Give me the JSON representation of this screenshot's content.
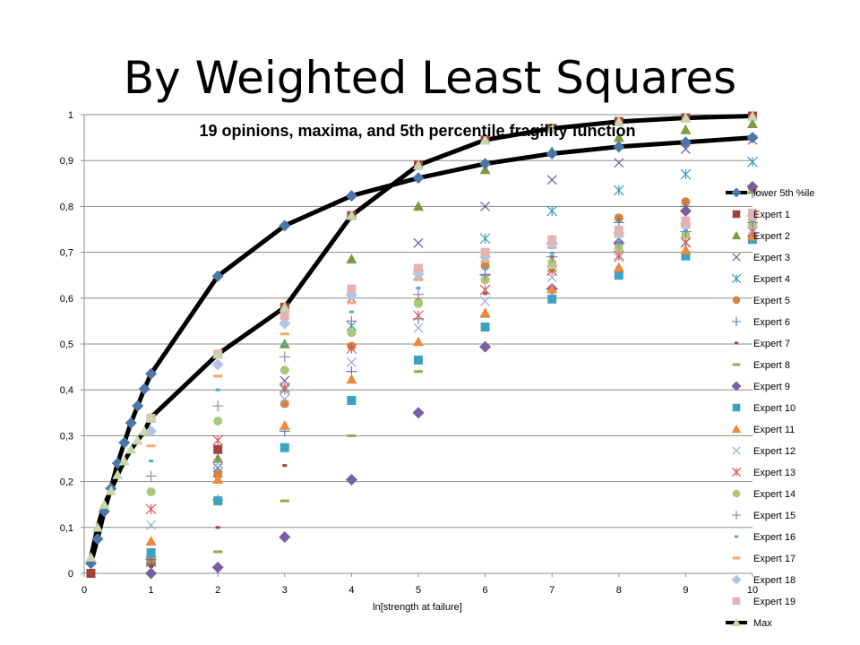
{
  "slide": {
    "title": "By Weighted Least Squares"
  },
  "chart_data": {
    "type": "scatter",
    "title": "19 opinions, maxima, and 5th percentile fragility function",
    "xlabel": "ln[strength at failure]",
    "ylabel": "",
    "xlim": [
      0,
      10
    ],
    "ylim": [
      0,
      1
    ],
    "x_ticks": [
      "0",
      "1",
      "2",
      "3",
      "4",
      "5",
      "6",
      "7",
      "8",
      "9",
      "10"
    ],
    "y_ticks": [
      "0",
      "0,1",
      "0,2",
      "0,3",
      "0,4",
      "0,5",
      "0,6",
      "0,7",
      "0,8",
      "0,9",
      "1"
    ],
    "grid": "horizontal",
    "legend": "right",
    "series": [
      {
        "name": "lower 5th %ile",
        "marker": "diamond",
        "color": "#4a76a8",
        "line": true,
        "x": [
          0.1,
          0.2,
          0.3,
          0.4,
          0.5,
          0.6,
          0.7,
          0.8,
          0.9,
          1,
          2,
          3,
          4,
          5,
          6,
          7,
          8,
          9,
          10
        ],
        "y": [
          0.022,
          0.075,
          0.135,
          0.185,
          0.24,
          0.285,
          0.328,
          0.365,
          0.402,
          0.435,
          0.648,
          0.758,
          0.823,
          0.862,
          0.893,
          0.915,
          0.93,
          0.94,
          0.95
        ]
      },
      {
        "name": "Expert 1",
        "marker": "square",
        "color": "#a0413e",
        "x": [
          0.1,
          1,
          2,
          3,
          4,
          5,
          6,
          7,
          8,
          9,
          10
        ],
        "y": [
          0.0,
          0.025,
          0.27,
          0.58,
          0.78,
          0.89,
          0.945,
          0.97,
          0.985,
          0.993,
          0.997
        ]
      },
      {
        "name": "Expert 2",
        "marker": "triangle",
        "color": "#7d9b3a",
        "x": [
          1,
          2,
          3,
          4,
          5,
          6,
          7,
          8,
          9,
          10
        ],
        "y": [
          0.03,
          0.25,
          0.5,
          0.685,
          0.8,
          0.88,
          0.92,
          0.95,
          0.967,
          0.98
        ]
      },
      {
        "name": "Expert 3",
        "marker": "x",
        "color": "#6a58a0",
        "x": [
          1,
          2,
          3,
          4,
          5,
          6,
          7,
          8,
          9,
          10
        ],
        "y": [
          0.03,
          0.23,
          0.42,
          0.6,
          0.72,
          0.8,
          0.858,
          0.895,
          0.925,
          0.945
        ]
      },
      {
        "name": "Expert 4",
        "marker": "star",
        "color": "#3d9db8",
        "x": [
          1,
          2,
          3,
          4,
          5,
          6,
          7,
          8,
          9,
          10
        ],
        "y": [
          0.025,
          0.22,
          0.4,
          0.54,
          0.65,
          0.73,
          0.79,
          0.835,
          0.87,
          0.897
        ]
      },
      {
        "name": "Expert 5",
        "marker": "circle",
        "color": "#d7823a",
        "x": [
          1,
          2,
          3,
          4,
          5,
          6,
          7,
          8,
          9,
          10
        ],
        "y": [
          0.03,
          0.215,
          0.37,
          0.495,
          0.59,
          0.67,
          0.728,
          0.775,
          0.81,
          0.84
        ]
      },
      {
        "name": "Expert 6",
        "marker": "plus",
        "color": "#4a76a8",
        "x": [
          1,
          2,
          3,
          4,
          5,
          6,
          7,
          8,
          9,
          10
        ],
        "y": [
          0.03,
          0.16,
          0.31,
          0.44,
          0.555,
          0.65,
          0.72,
          0.765,
          0.8,
          0.83
        ]
      },
      {
        "name": "Expert 7",
        "marker": "shortdash",
        "color": "#a0413e",
        "x": [
          1,
          2,
          3,
          4,
          5,
          6,
          7,
          8,
          9,
          10
        ],
        "y": [
          0.015,
          0.1,
          0.235,
          0.38,
          0.5,
          0.61,
          0.69,
          0.75,
          0.795,
          0.83
        ]
      },
      {
        "name": "Expert 8",
        "marker": "dash",
        "color": "#8caf4a",
        "x": [
          1,
          2,
          3,
          4,
          5,
          6,
          7,
          8,
          9,
          10
        ],
        "y": [
          0.0,
          0.047,
          0.158,
          0.3,
          0.44,
          0.56,
          0.66,
          0.735,
          0.79,
          0.83
        ]
      },
      {
        "name": "Expert 9",
        "marker": "diamond",
        "color": "#7a5ea3",
        "x": [
          1,
          2,
          3,
          4,
          5,
          6,
          7,
          8,
          9,
          10
        ],
        "y": [
          0.0,
          0.013,
          0.079,
          0.204,
          0.35,
          0.494,
          0.62,
          0.72,
          0.79,
          0.843
        ]
      },
      {
        "name": "Expert 10",
        "marker": "square",
        "color": "#3ba3bf",
        "x": [
          1,
          2,
          3,
          4,
          5,
          6,
          7,
          8,
          9,
          10
        ],
        "y": [
          0.045,
          0.158,
          0.274,
          0.377,
          0.465,
          0.537,
          0.598,
          0.65,
          0.692,
          0.728
        ]
      },
      {
        "name": "Expert 11",
        "marker": "triangle",
        "color": "#ee8a3a",
        "x": [
          1,
          2,
          3,
          4,
          5,
          6,
          7,
          8,
          9,
          10
        ],
        "y": [
          0.07,
          0.205,
          0.322,
          0.423,
          0.505,
          0.568,
          0.62,
          0.667,
          0.705,
          0.735
        ]
      },
      {
        "name": "Expert 12",
        "marker": "x",
        "color": "#93aad6",
        "x": [
          1,
          2,
          3,
          4,
          5,
          6,
          7,
          8,
          9,
          10
        ],
        "y": [
          0.105,
          0.24,
          0.38,
          0.46,
          0.535,
          0.593,
          0.645,
          0.688,
          0.72,
          0.75
        ]
      },
      {
        "name": "Expert 13",
        "marker": "star",
        "color": "#d85a58",
        "x": [
          1,
          2,
          3,
          4,
          5,
          6,
          7,
          8,
          9,
          10
        ],
        "y": [
          0.14,
          0.29,
          0.405,
          0.49,
          0.562,
          0.618,
          0.66,
          0.693,
          0.722,
          0.745
        ]
      },
      {
        "name": "Expert 14",
        "marker": "circle",
        "color": "#aac77a",
        "x": [
          1,
          2,
          3,
          4,
          5,
          6,
          7,
          8,
          9,
          10
        ],
        "y": [
          0.178,
          0.332,
          0.443,
          0.525,
          0.588,
          0.64,
          0.677,
          0.71,
          0.738,
          0.762
        ]
      },
      {
        "name": "Expert 15",
        "marker": "plus",
        "color": "#8b7dab",
        "x": [
          1,
          2,
          3,
          4,
          5,
          6,
          7,
          8,
          9,
          10
        ],
        "y": [
          0.212,
          0.365,
          0.472,
          0.55,
          0.608,
          0.652,
          0.69,
          0.72,
          0.745,
          0.765
        ]
      },
      {
        "name": "Expert 16",
        "marker": "shortdash",
        "color": "#4aafcf",
        "x": [
          1,
          2,
          3,
          4,
          5,
          6,
          7,
          8,
          9,
          10
        ],
        "y": [
          0.245,
          0.4,
          0.5,
          0.57,
          0.622,
          0.665,
          0.698,
          0.725,
          0.748,
          0.77
        ]
      },
      {
        "name": "Expert 17",
        "marker": "dash",
        "color": "#f5a96a",
        "x": [
          1,
          2,
          3,
          4,
          5,
          6,
          7,
          8,
          9,
          10
        ],
        "y": [
          0.278,
          0.43,
          0.522,
          0.59,
          0.64,
          0.68,
          0.71,
          0.735,
          0.755,
          0.772
        ]
      },
      {
        "name": "Expert 18",
        "marker": "diamond",
        "color": "#b3c5e6",
        "x": [
          1,
          2,
          3,
          4,
          5,
          6,
          7,
          8,
          9,
          10
        ],
        "y": [
          0.31,
          0.455,
          0.545,
          0.607,
          0.653,
          0.69,
          0.718,
          0.742,
          0.762,
          0.78
        ]
      },
      {
        "name": "Expert 19",
        "marker": "square",
        "color": "#e6b3b3",
        "x": [
          1,
          2,
          3,
          4,
          5,
          6,
          7,
          8,
          9,
          10
        ],
        "y": [
          0.338,
          0.478,
          0.562,
          0.62,
          0.665,
          0.7,
          0.727,
          0.748,
          0.768,
          0.785
        ]
      },
      {
        "name": "Max",
        "marker": "triangle",
        "color": "#c6d8a8",
        "line": true,
        "x": [
          0.1,
          0.2,
          0.3,
          0.4,
          0.5,
          0.6,
          0.7,
          0.8,
          0.9,
          1,
          2,
          3,
          4,
          5,
          6,
          7,
          8,
          9,
          10
        ],
        "y": [
          0.035,
          0.1,
          0.15,
          0.18,
          0.215,
          0.245,
          0.27,
          0.29,
          0.31,
          0.34,
          0.478,
          0.58,
          0.78,
          0.89,
          0.945,
          0.97,
          0.985,
          0.993,
          0.997
        ]
      }
    ]
  }
}
